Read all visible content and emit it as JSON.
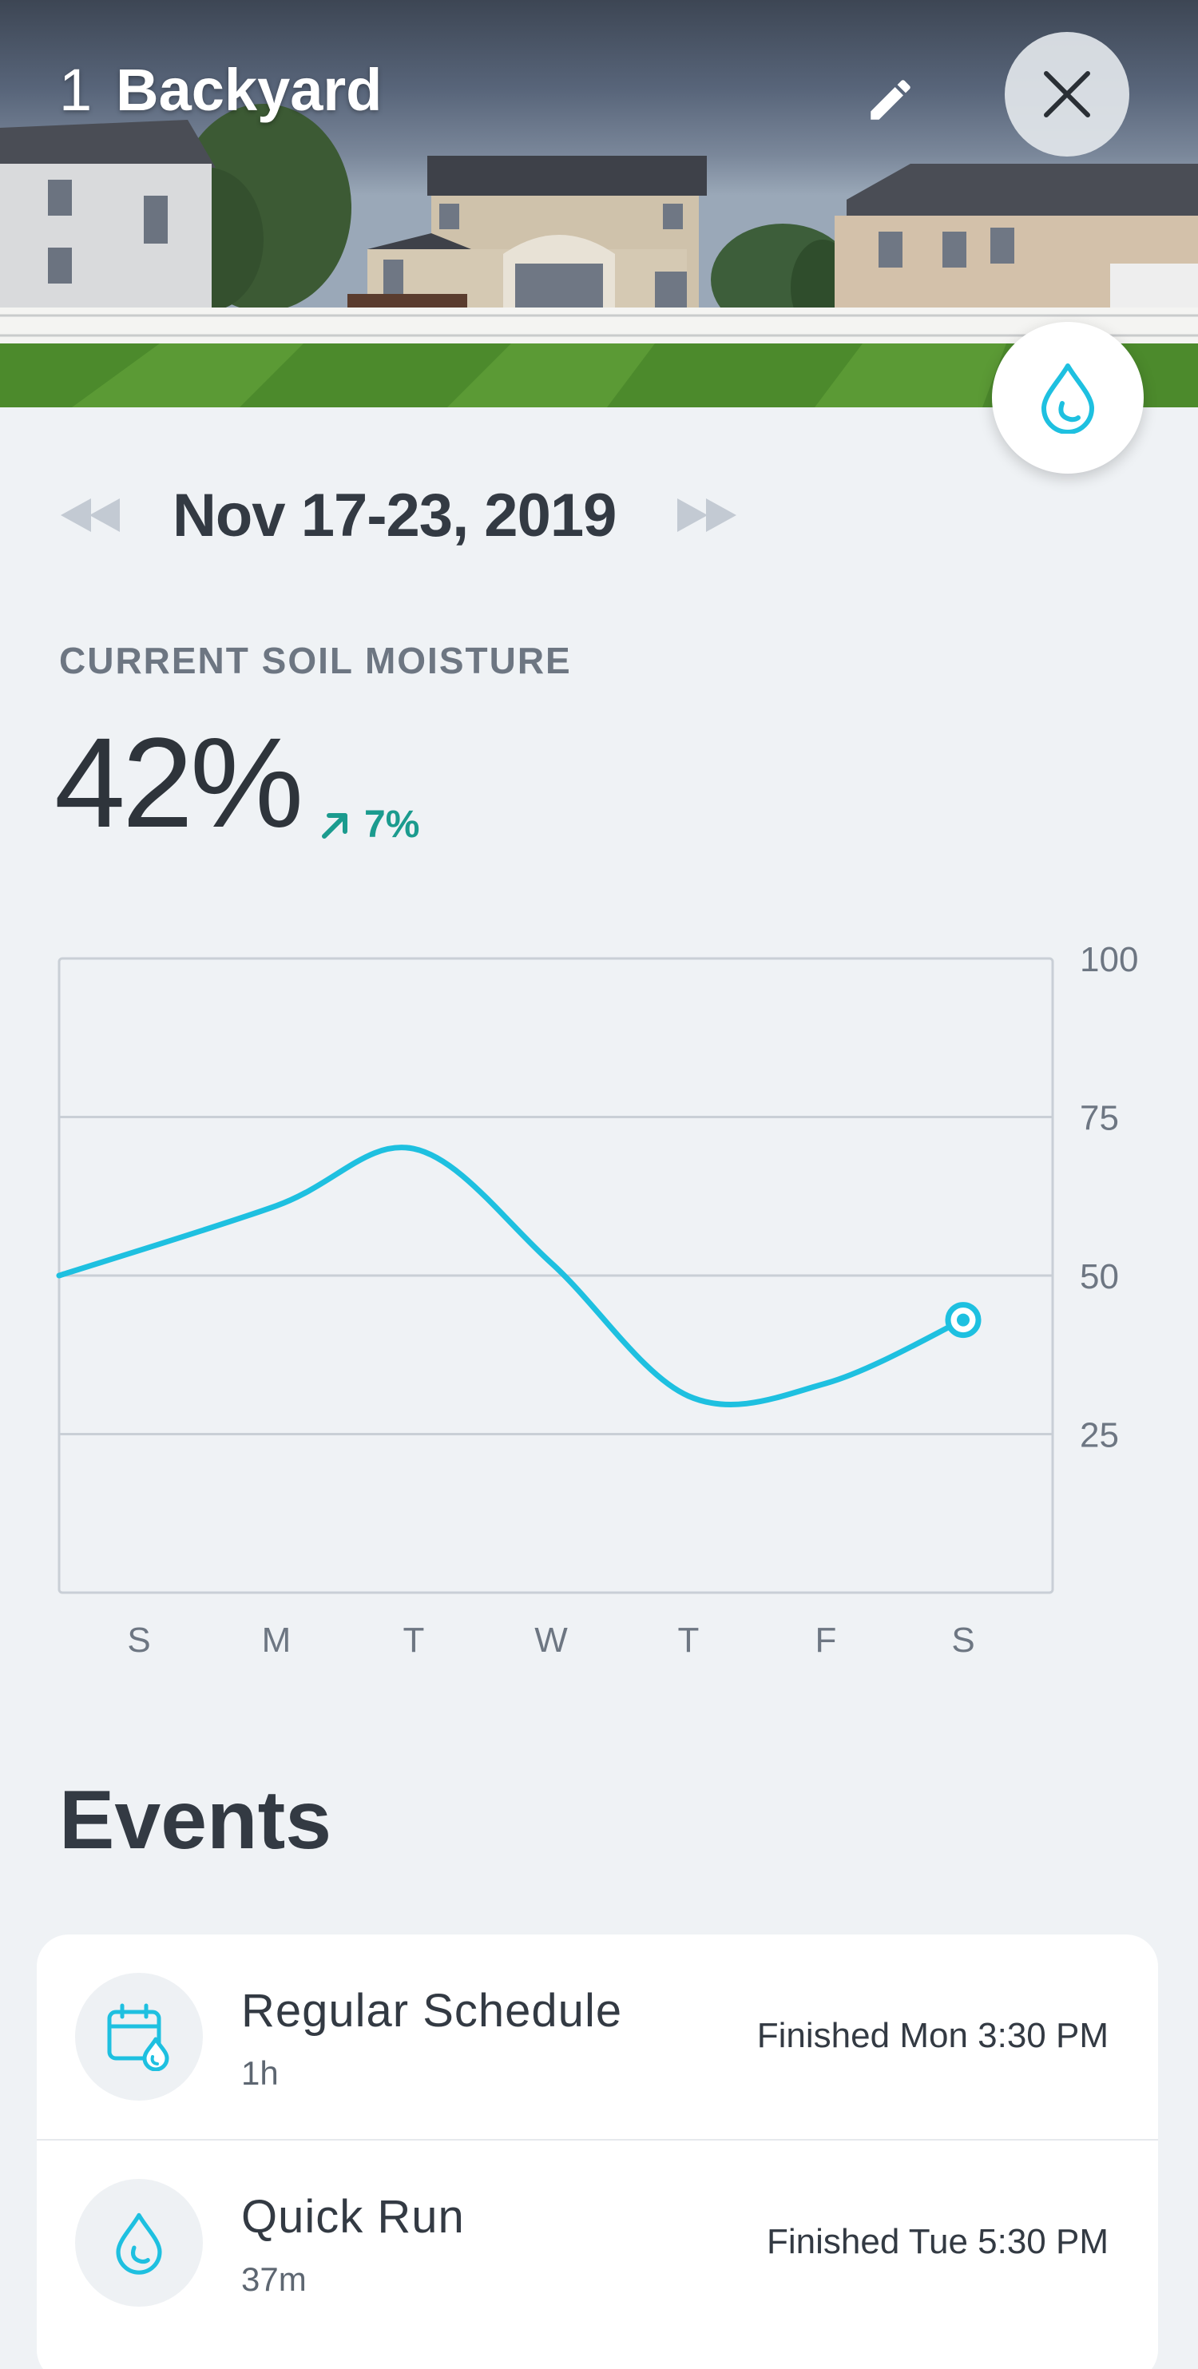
{
  "header": {
    "zone_number": "1",
    "zone_name": "Backyard",
    "edit_icon": "pencil-icon",
    "close_icon": "close-icon",
    "water_icon": "water-drop-icon"
  },
  "date_nav": {
    "range": "Nov 17-23, 2019",
    "prev_icon": "rewind-icon",
    "next_icon": "fast-forward-icon"
  },
  "moisture": {
    "label": "CURRENT SOIL MOISTURE",
    "value": "42%",
    "change": "7%",
    "change_icon": "arrow-up-right-icon"
  },
  "chart_data": {
    "type": "line",
    "title": "",
    "xlabel": "",
    "ylabel": "",
    "categories": [
      "S",
      "M",
      "T",
      "W",
      "T",
      "F",
      "S"
    ],
    "series": [
      {
        "values": [
          50,
          61,
          70,
          52,
          31,
          33,
          43
        ]
      }
    ],
    "ylim": [
      0,
      100
    ],
    "yticks": [
      "100",
      "75",
      "50",
      "25"
    ],
    "grid": true,
    "legend": "none"
  },
  "colors": {
    "accent": "#1ec0e0",
    "positive": "#1b9b8e",
    "background": "#eff2f5"
  },
  "events": {
    "title": "Events",
    "items": [
      {
        "name": "Regular Schedule",
        "duration": "1h",
        "status": "Finished Mon 3:30 PM",
        "icon": "calendar-drop-icon"
      },
      {
        "name": "Quick Run",
        "duration": "37m",
        "status": "Finished Tue 5:30 PM",
        "icon": "water-drop-icon"
      }
    ]
  }
}
